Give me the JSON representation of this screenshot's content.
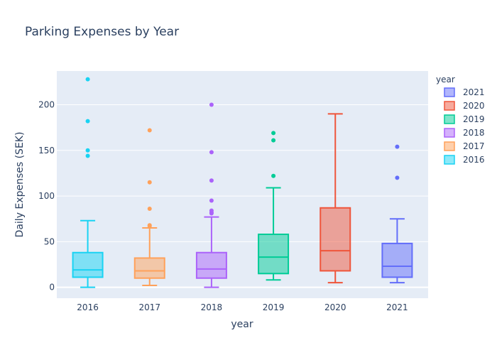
{
  "chart_data": {
    "type": "box",
    "title": "Parking Expenses by Year",
    "xlabel": "year",
    "ylabel": "Daily Expenses (SEK)",
    "ylim": [
      -12,
      237
    ],
    "yticks": [
      0,
      50,
      100,
      150,
      200
    ],
    "grid": true,
    "legend": {
      "title": "year",
      "position": "top-right",
      "order": [
        "2021",
        "2020",
        "2019",
        "2018",
        "2017",
        "2016"
      ]
    },
    "categories": [
      "2016",
      "2017",
      "2018",
      "2019",
      "2020",
      "2021"
    ],
    "series": [
      {
        "name": "2016",
        "color": "#19d3f3",
        "min": 0,
        "q1": 11,
        "median": 19,
        "q3": 38,
        "max": 73,
        "outliers": [
          144,
          150,
          182,
          228
        ]
      },
      {
        "name": "2017",
        "color": "#ffa15a",
        "min": 2,
        "q1": 10,
        "median": 18,
        "q3": 32,
        "max": 65,
        "outliers": [
          67,
          68,
          86,
          115,
          172
        ]
      },
      {
        "name": "2018",
        "color": "#ab63fa",
        "min": 0,
        "q1": 10,
        "median": 20,
        "q3": 38,
        "max": 77,
        "outliers": [
          81,
          82,
          84,
          95,
          117,
          148,
          200
        ]
      },
      {
        "name": "2019",
        "color": "#00cc96",
        "min": 8,
        "q1": 15,
        "median": 33,
        "q3": 58,
        "max": 109,
        "outliers": [
          122,
          161,
          169
        ]
      },
      {
        "name": "2020",
        "color": "#ef553b",
        "min": 5,
        "q1": 18,
        "median": 40,
        "q3": 87,
        "max": 190,
        "outliers": []
      },
      {
        "name": "2021",
        "color": "#636efa",
        "min": 5,
        "q1": 11,
        "median": 23,
        "q3": 48,
        "max": 75,
        "outliers": [
          120,
          154
        ]
      }
    ]
  }
}
